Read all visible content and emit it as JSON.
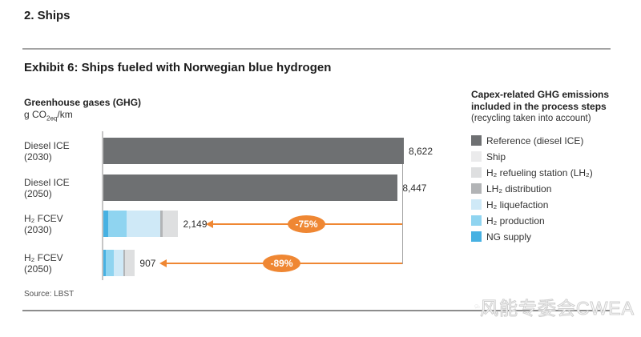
{
  "page": {
    "title": "2. Ships",
    "source": "Source: LBST",
    "watermark": "风能专委会CWEA"
  },
  "exhibit": {
    "title": "Exhibit 6: Ships fueled with Norwegian blue hydrogen"
  },
  "chart_data": {
    "type": "bar",
    "orientation": "horizontal",
    "title": "Greenhouse gases (GHG)",
    "unit": {
      "pre": "g CO",
      "sub": "2eq",
      "post": "/km"
    },
    "xlim": [
      0,
      8800
    ],
    "categories": [
      "Diesel ICE (2030)",
      "Diesel ICE (2050)",
      "H₂ FCEV (2030)",
      "H₂ FCEV (2050)"
    ],
    "rows": [
      {
        "label_line1": "Diesel ICE",
        "label_line2": "(2030)",
        "total": 8622,
        "total_label": "8,622",
        "segments": [
          {
            "key": "reference",
            "value": 8622
          }
        ]
      },
      {
        "label_line1": "Diesel ICE",
        "label_line2": "(2050)",
        "total": 8447,
        "total_label": "8,447",
        "segments": [
          {
            "key": "reference",
            "value": 8447
          }
        ]
      },
      {
        "label_line1": "H₂ FCEV",
        "label_line2": "(2030)",
        "total": 2149,
        "total_label": "2,149",
        "segments": [
          {
            "key": "ng_supply",
            "value": 142
          },
          {
            "key": "h2_production",
            "value": 519
          },
          {
            "key": "h2_liquefaction",
            "value": 968
          },
          {
            "key": "lh2_distribution",
            "value": 71
          },
          {
            "key": "h2_refueling_station",
            "value": 449
          }
        ]
      },
      {
        "label_line1": "H₂ FCEV",
        "label_line2": "(2050)",
        "total": 907,
        "total_label": "907",
        "segments": [
          {
            "key": "ng_supply",
            "value": 74
          },
          {
            "key": "h2_production",
            "value": 220
          },
          {
            "key": "h2_liquefaction",
            "value": 270
          },
          {
            "key": "lh2_distribution",
            "value": 49
          },
          {
            "key": "h2_refueling_station",
            "value": 294
          }
        ]
      }
    ],
    "annotations": [
      {
        "label": "-75%",
        "row_index": 2,
        "compares_to_row": 0
      },
      {
        "label": "-89%",
        "row_index": 3,
        "compares_to_row": 1
      }
    ],
    "colors": {
      "reference": "#6e7072",
      "ship": "#ebebec",
      "h2_refueling_station": "#dedfe0",
      "lh2_distribution": "#b2b4b6",
      "h2_liquefaction": "#cfe9f7",
      "h2_production": "#8fd4f0",
      "ng_supply": "#47b1e2",
      "accent_orange": "#ef8733",
      "axis_gray": "#c6c6c6",
      "reference_line_gray": "#a5a5a5"
    }
  },
  "legend": {
    "title_line1": "Capex-related GHG emissions",
    "title_line2": "included in the process steps",
    "subtitle": "(recycling taken into account)",
    "items": [
      {
        "key": "reference",
        "label": "Reference (diesel ICE)"
      },
      {
        "key": "ship",
        "label": "Ship"
      },
      {
        "key": "h2_refueling_station",
        "label": "H₂ refueling station (LH₂)"
      },
      {
        "key": "lh2_distribution",
        "label": "LH₂ distribution"
      },
      {
        "key": "h2_liquefaction",
        "label": "H₂ liquefaction"
      },
      {
        "key": "h2_production",
        "label": "H₂ production"
      },
      {
        "key": "ng_supply",
        "label": "NG supply"
      }
    ]
  }
}
